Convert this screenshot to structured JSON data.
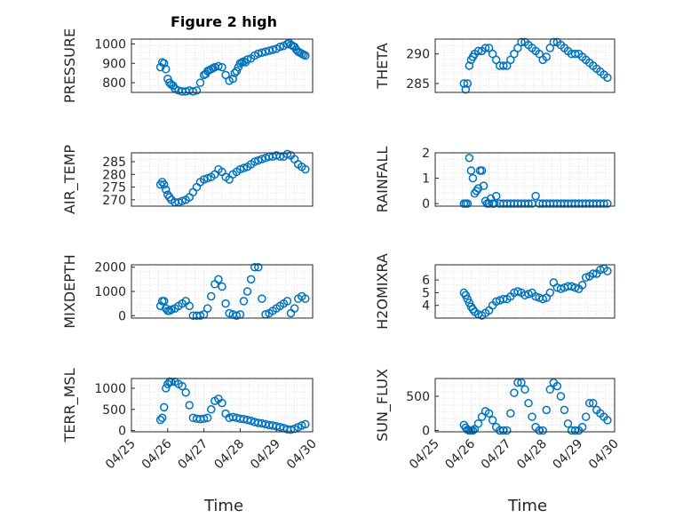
{
  "figure": {
    "title": "Figure 2 high",
    "xlabel": "Time",
    "marker_color": "#0072BD",
    "grid_color": "#d9d9d9",
    "axis_color": "#262626"
  },
  "chart_data": [
    {
      "type": "scatter",
      "id": "pressure",
      "ylabel": "PRESSURE",
      "title": "Figure 2 high",
      "ylim": [
        750,
        1025
      ],
      "yticks": [
        800,
        900,
        1000
      ],
      "xlim": [
        0,
        5
      ],
      "xticks": [],
      "x": [
        0.8,
        0.85,
        0.9,
        0.95,
        1.0,
        1.05,
        1.1,
        1.15,
        1.2,
        1.3,
        1.4,
        1.5,
        1.6,
        1.7,
        1.8,
        1.9,
        2.0,
        2.05,
        2.1,
        2.15,
        2.2,
        2.25,
        2.3,
        2.4,
        2.5,
        2.6,
        2.7,
        2.8,
        2.85,
        2.9,
        2.95,
        3.0,
        3.05,
        3.1,
        3.15,
        3.2,
        3.3,
        3.4,
        3.5,
        3.6,
        3.7,
        3.8,
        3.9,
        4.0,
        4.1,
        4.2,
        4.3,
        4.35,
        4.4,
        4.45,
        4.5,
        4.55,
        4.6,
        4.65,
        4.7,
        4.75,
        4.8
      ],
      "y": [
        880,
        905,
        900,
        870,
        820,
        800,
        790,
        785,
        770,
        760,
        755,
        755,
        760,
        755,
        760,
        800,
        840,
        845,
        860,
        865,
        870,
        875,
        880,
        885,
        880,
        840,
        810,
        820,
        850,
        860,
        880,
        900,
        905,
        910,
        905,
        920,
        925,
        940,
        950,
        955,
        960,
        965,
        970,
        975,
        985,
        990,
        1000,
        1005,
        995,
        990,
        985,
        970,
        960,
        955,
        950,
        945,
        940
      ]
    },
    {
      "type": "scatter",
      "id": "theta",
      "ylabel": "THETA",
      "ylim": [
        283.5,
        292.5
      ],
      "yticks": [
        285,
        290
      ],
      "xlim": [
        0,
        5
      ],
      "xticks": [],
      "x": [
        0.8,
        0.85,
        0.9,
        0.95,
        1.0,
        1.05,
        1.1,
        1.2,
        1.3,
        1.4,
        1.5,
        1.6,
        1.7,
        1.8,
        1.9,
        2.0,
        2.1,
        2.2,
        2.3,
        2.4,
        2.5,
        2.6,
        2.7,
        2.8,
        2.9,
        3.0,
        3.1,
        3.2,
        3.3,
        3.4,
        3.5,
        3.6,
        3.7,
        3.8,
        3.9,
        4.0,
        4.1,
        4.2,
        4.3,
        4.4,
        4.5,
        4.6,
        4.7,
        4.8
      ],
      "y": [
        285,
        284,
        285,
        288,
        289,
        289.5,
        290,
        290.5,
        290.5,
        291,
        291,
        290,
        289,
        288,
        288,
        288,
        289,
        290,
        291,
        292,
        292,
        291.5,
        291,
        290.5,
        290,
        289,
        289.5,
        291,
        292,
        292,
        291.5,
        291,
        290.5,
        290,
        290,
        290,
        289.5,
        289,
        288.5,
        288,
        287.5,
        287,
        286.5,
        286
      ]
    },
    {
      "type": "scatter",
      "id": "air_temp",
      "ylabel": "AIR_TEMP",
      "ylim": [
        267.5,
        288.5
      ],
      "yticks": [
        270,
        275,
        280,
        285
      ],
      "xlim": [
        0,
        5
      ],
      "xticks": [],
      "x": [
        0.8,
        0.85,
        0.9,
        0.95,
        1.0,
        1.05,
        1.1,
        1.2,
        1.3,
        1.4,
        1.5,
        1.6,
        1.7,
        1.8,
        1.9,
        2.0,
        2.1,
        2.2,
        2.3,
        2.4,
        2.5,
        2.6,
        2.7,
        2.8,
        2.9,
        3.0,
        3.1,
        3.2,
        3.3,
        3.4,
        3.5,
        3.6,
        3.7,
        3.8,
        3.9,
        4.0,
        4.1,
        4.2,
        4.3,
        4.4,
        4.5,
        4.6,
        4.7,
        4.8
      ],
      "y": [
        276,
        277,
        276,
        274,
        272,
        271,
        270,
        269,
        269,
        269.5,
        270,
        271,
        273,
        275,
        277,
        278,
        278.5,
        279,
        280,
        282,
        281,
        279,
        278,
        280,
        281,
        282,
        282.5,
        283,
        284,
        285,
        285.5,
        286,
        286.5,
        287,
        287,
        287.5,
        287,
        287,
        288,
        287.5,
        286,
        284,
        283,
        282
      ]
    },
    {
      "type": "scatter",
      "id": "rainfall",
      "ylabel": "RAINFALL",
      "ylim": [
        -0.1,
        2.0
      ],
      "yticks": [
        0,
        1,
        2
      ],
      "xlim": [
        0,
        5
      ],
      "xticks": [],
      "x": [
        0.8,
        0.85,
        0.9,
        0.95,
        1.0,
        1.05,
        1.1,
        1.15,
        1.2,
        1.25,
        1.3,
        1.35,
        1.4,
        1.45,
        1.5,
        1.55,
        1.6,
        1.65,
        1.7,
        1.8,
        1.9,
        2.0,
        2.1,
        2.2,
        2.3,
        2.4,
        2.5,
        2.6,
        2.7,
        2.8,
        2.9,
        3.0,
        3.1,
        3.2,
        3.3,
        3.4,
        3.5,
        3.6,
        3.7,
        3.8,
        3.9,
        4.0,
        4.1,
        4.2,
        4.3,
        4.4,
        4.5,
        4.6,
        4.7,
        4.8
      ],
      "y": [
        0,
        0,
        0,
        1.8,
        1.3,
        1.0,
        0.4,
        0.5,
        0.6,
        1.3,
        1.3,
        0.7,
        0.1,
        0,
        0,
        0.2,
        0,
        0,
        0.3,
        0,
        0,
        0,
        0,
        0,
        0,
        0,
        0,
        0,
        0,
        0.3,
        0,
        0,
        0,
        0,
        0,
        0,
        0,
        0,
        0,
        0,
        0,
        0,
        0,
        0,
        0,
        0,
        0,
        0,
        0,
        0
      ]
    },
    {
      "type": "scatter",
      "id": "mixdepth",
      "ylabel": "MIXDEPTH",
      "ylim": [
        -100,
        2100
      ],
      "yticks": [
        0,
        1000,
        2000
      ],
      "xlim": [
        0,
        5
      ],
      "xticks": [],
      "x": [
        0.8,
        0.85,
        0.9,
        0.95,
        1.0,
        1.05,
        1.1,
        1.2,
        1.3,
        1.4,
        1.5,
        1.6,
        1.7,
        1.8,
        1.9,
        2.0,
        2.1,
        2.2,
        2.3,
        2.4,
        2.5,
        2.6,
        2.7,
        2.8,
        2.9,
        3.0,
        3.1,
        3.2,
        3.3,
        3.4,
        3.5,
        3.6,
        3.7,
        3.8,
        3.9,
        4.0,
        4.1,
        4.2,
        4.3,
        4.4,
        4.5,
        4.6,
        4.7,
        4.8
      ],
      "y": [
        400,
        600,
        600,
        300,
        200,
        200,
        250,
        300,
        400,
        500,
        600,
        400,
        0,
        0,
        0,
        50,
        300,
        800,
        1300,
        1500,
        1200,
        500,
        100,
        50,
        0,
        50,
        600,
        1000,
        1500,
        2000,
        2000,
        700,
        50,
        100,
        200,
        300,
        400,
        500,
        600,
        100,
        300,
        700,
        800,
        700
      ]
    },
    {
      "type": "scatter",
      "id": "h2omixra",
      "ylabel": "H2OMIXRA",
      "ylim": [
        3.0,
        7.2
      ],
      "yticks": [
        4,
        5,
        6
      ],
      "xlim": [
        0,
        5
      ],
      "xticks": [],
      "x": [
        0.8,
        0.85,
        0.9,
        0.95,
        1.0,
        1.05,
        1.1,
        1.2,
        1.3,
        1.4,
        1.5,
        1.6,
        1.7,
        1.8,
        1.9,
        2.0,
        2.1,
        2.2,
        2.3,
        2.4,
        2.5,
        2.6,
        2.7,
        2.8,
        2.9,
        3.0,
        3.1,
        3.2,
        3.3,
        3.4,
        3.5,
        3.6,
        3.7,
        3.8,
        3.9,
        4.0,
        4.1,
        4.2,
        4.3,
        4.4,
        4.5,
        4.6,
        4.7,
        4.8
      ],
      "y": [
        5.0,
        4.8,
        4.5,
        4.2,
        3.9,
        3.7,
        3.5,
        3.3,
        3.2,
        3.4,
        3.6,
        4.0,
        4.3,
        4.4,
        4.5,
        4.5,
        4.7,
        5.0,
        5.1,
        5.0,
        4.8,
        4.9,
        5.0,
        4.7,
        4.6,
        4.5,
        4.6,
        5.0,
        5.8,
        5.4,
        5.3,
        5.4,
        5.5,
        5.5,
        5.4,
        5.3,
        5.6,
        6.2,
        6.3,
        6.5,
        6.5,
        6.8,
        6.9,
        6.7
      ]
    },
    {
      "type": "scatter",
      "id": "terr_msl",
      "ylabel": "TERR_MSL",
      "ylim": [
        -30,
        1230
      ],
      "yticks": [
        0,
        500,
        1000
      ],
      "xlim": [
        0,
        5
      ],
      "xticks": [
        "04/25",
        "04/26",
        "04/27",
        "04/28",
        "04/29",
        "04/30"
      ],
      "xtick_values": [
        0,
        1,
        2,
        3,
        4,
        5
      ],
      "x": [
        0.8,
        0.85,
        0.9,
        0.95,
        1.0,
        1.05,
        1.1,
        1.2,
        1.3,
        1.4,
        1.5,
        1.6,
        1.7,
        1.8,
        1.9,
        2.0,
        2.1,
        2.2,
        2.3,
        2.4,
        2.5,
        2.6,
        2.7,
        2.8,
        2.9,
        3.0,
        3.1,
        3.2,
        3.3,
        3.4,
        3.5,
        3.6,
        3.7,
        3.8,
        3.9,
        4.0,
        4.1,
        4.2,
        4.3,
        4.4,
        4.5,
        4.6,
        4.7,
        4.8
      ],
      "y": [
        250,
        300,
        550,
        1000,
        1100,
        1150,
        1150,
        1150,
        1100,
        1050,
        900,
        600,
        300,
        280,
        270,
        280,
        300,
        500,
        700,
        750,
        650,
        400,
        300,
        320,
        300,
        280,
        270,
        250,
        230,
        200,
        180,
        170,
        150,
        130,
        120,
        100,
        80,
        60,
        30,
        20,
        40,
        80,
        120,
        150
      ]
    },
    {
      "type": "scatter",
      "id": "sun_flux",
      "ylabel": "SUN_FLUX",
      "ylim": [
        -20,
        760
      ],
      "yticks": [
        0,
        500
      ],
      "xlim": [
        0,
        5
      ],
      "xticks": [
        "04/25",
        "04/26",
        "04/27",
        "04/28",
        "04/29",
        "04/30"
      ],
      "xtick_values": [
        0,
        1,
        2,
        3,
        4,
        5
      ],
      "x": [
        0.8,
        0.85,
        0.9,
        0.95,
        1.0,
        1.05,
        1.1,
        1.2,
        1.3,
        1.4,
        1.5,
        1.6,
        1.7,
        1.8,
        1.9,
        2.0,
        2.1,
        2.2,
        2.3,
        2.4,
        2.5,
        2.6,
        2.7,
        2.8,
        2.9,
        3.0,
        3.1,
        3.2,
        3.3,
        3.4,
        3.5,
        3.6,
        3.7,
        3.8,
        3.9,
        4.0,
        4.1,
        4.2,
        4.3,
        4.4,
        4.5,
        4.6,
        4.7,
        4.8
      ],
      "y": [
        80,
        40,
        10,
        0,
        0,
        0,
        20,
        100,
        200,
        280,
        250,
        150,
        50,
        0,
        0,
        0,
        250,
        550,
        700,
        700,
        600,
        400,
        200,
        50,
        0,
        0,
        300,
        600,
        700,
        650,
        500,
        300,
        100,
        0,
        0,
        0,
        50,
        200,
        400,
        400,
        300,
        250,
        200,
        150
      ]
    }
  ]
}
